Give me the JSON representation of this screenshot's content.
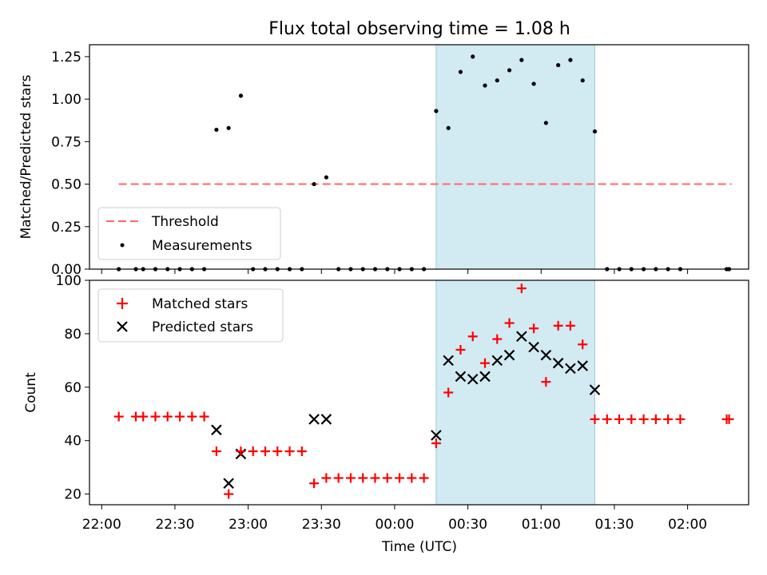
{
  "chart_data": {
    "title": "Flux total observing time = 1.08 h",
    "xlabel": "Time (UTC)",
    "x_ticks": [
      "22:00",
      "22:30",
      "23:00",
      "23:30",
      "00:00",
      "00:30",
      "01:00",
      "01:30",
      "02:00"
    ],
    "x_range_minutes_from_22_00": [
      -5,
      265
    ],
    "highlight_interval": [
      "00:17",
      "01:22"
    ],
    "highlight_color": "#add8e6",
    "top": {
      "type": "scatter",
      "ylabel": "Matched/Predicted stars",
      "ylim": [
        0,
        1.32
      ],
      "yticks": [
        "0.00",
        "0.25",
        "0.50",
        "0.75",
        "1.00",
        "1.25"
      ],
      "legend": {
        "placement": "lower-left",
        "entries": [
          "Threshold",
          "Measurements"
        ]
      },
      "threshold": {
        "name": "Threshold",
        "value": 0.5,
        "x_range": [
          "22:07",
          "02:18"
        ],
        "color": "#ff6666",
        "style": "dashed"
      },
      "measurements": {
        "name": "Measurements",
        "color": "#000000",
        "points": [
          [
            "22:07",
            0.0
          ],
          [
            "22:14",
            0.0
          ],
          [
            "22:17",
            0.0
          ],
          [
            "22:22",
            0.0
          ],
          [
            "22:27",
            0.0
          ],
          [
            "22:32",
            0.0
          ],
          [
            "22:37",
            0.0
          ],
          [
            "22:42",
            0.0
          ],
          [
            "22:47",
            0.82
          ],
          [
            "22:52",
            0.83
          ],
          [
            "22:57",
            1.02
          ],
          [
            "23:02",
            0.0
          ],
          [
            "23:07",
            0.0
          ],
          [
            "23:12",
            0.0
          ],
          [
            "23:17",
            0.0
          ],
          [
            "23:22",
            0.0
          ],
          [
            "23:27",
            0.5
          ],
          [
            "23:32",
            0.54
          ],
          [
            "23:37",
            0.0
          ],
          [
            "23:42",
            0.0
          ],
          [
            "23:47",
            0.0
          ],
          [
            "23:52",
            0.0
          ],
          [
            "23:57",
            0.0
          ],
          [
            "00:02",
            0.0
          ],
          [
            "00:07",
            0.0
          ],
          [
            "00:12",
            0.0
          ],
          [
            "00:17",
            0.93
          ],
          [
            "00:22",
            0.83
          ],
          [
            "00:27",
            1.16
          ],
          [
            "00:32",
            1.25
          ],
          [
            "00:37",
            1.08
          ],
          [
            "00:42",
            1.11
          ],
          [
            "00:47",
            1.17
          ],
          [
            "00:52",
            1.23
          ],
          [
            "00:57",
            1.09
          ],
          [
            "01:02",
            0.86
          ],
          [
            "01:07",
            1.2
          ],
          [
            "01:12",
            1.23
          ],
          [
            "01:17",
            1.11
          ],
          [
            "01:22",
            0.81
          ],
          [
            "01:27",
            0.0
          ],
          [
            "01:32",
            0.0
          ],
          [
            "01:37",
            0.0
          ],
          [
            "01:42",
            0.0
          ],
          [
            "01:47",
            0.0
          ],
          [
            "01:52",
            0.0
          ],
          [
            "01:57",
            0.0
          ],
          [
            "02:16",
            0.0
          ],
          [
            "02:17",
            0.0
          ]
        ]
      }
    },
    "bottom": {
      "type": "scatter",
      "ylabel": "Count",
      "ylim": [
        16,
        100
      ],
      "yticks": [
        "20",
        "40",
        "60",
        "80",
        "100"
      ],
      "legend": {
        "placement": "upper-left",
        "entries": [
          "Matched stars",
          "Predicted stars"
        ]
      },
      "matched": {
        "name": "Matched stars",
        "color": "#ff0000",
        "marker": "+",
        "points": [
          [
            "22:07",
            49
          ],
          [
            "22:14",
            49
          ],
          [
            "22:17",
            49
          ],
          [
            "22:22",
            49
          ],
          [
            "22:27",
            49
          ],
          [
            "22:32",
            49
          ],
          [
            "22:37",
            49
          ],
          [
            "22:42",
            49
          ],
          [
            "22:47",
            36
          ],
          [
            "22:52",
            20
          ],
          [
            "22:57",
            36
          ],
          [
            "23:02",
            36
          ],
          [
            "23:07",
            36
          ],
          [
            "23:12",
            36
          ],
          [
            "23:17",
            36
          ],
          [
            "23:22",
            36
          ],
          [
            "23:27",
            24
          ],
          [
            "23:32",
            26
          ],
          [
            "23:37",
            26
          ],
          [
            "23:42",
            26
          ],
          [
            "23:47",
            26
          ],
          [
            "23:52",
            26
          ],
          [
            "23:57",
            26
          ],
          [
            "00:02",
            26
          ],
          [
            "00:07",
            26
          ],
          [
            "00:12",
            26
          ],
          [
            "00:17",
            39
          ],
          [
            "00:22",
            58
          ],
          [
            "00:27",
            74
          ],
          [
            "00:32",
            79
          ],
          [
            "00:37",
            69
          ],
          [
            "00:42",
            78
          ],
          [
            "00:47",
            84
          ],
          [
            "00:52",
            97
          ],
          [
            "00:57",
            82
          ],
          [
            "01:02",
            62
          ],
          [
            "01:07",
            83
          ],
          [
            "01:12",
            83
          ],
          [
            "01:17",
            76
          ],
          [
            "01:22",
            48
          ],
          [
            "01:27",
            48
          ],
          [
            "01:32",
            48
          ],
          [
            "01:37",
            48
          ],
          [
            "01:42",
            48
          ],
          [
            "01:47",
            48
          ],
          [
            "01:52",
            48
          ],
          [
            "01:57",
            48
          ],
          [
            "02:16",
            48
          ],
          [
            "02:17",
            48
          ]
        ]
      },
      "predicted": {
        "name": "Predicted stars",
        "color": "#000000",
        "marker": "x",
        "points": [
          [
            "22:47",
            44
          ],
          [
            "22:52",
            24
          ],
          [
            "22:57",
            35
          ],
          [
            "23:27",
            48
          ],
          [
            "23:32",
            48
          ],
          [
            "00:17",
            42
          ],
          [
            "00:22",
            70
          ],
          [
            "00:27",
            64
          ],
          [
            "00:32",
            63
          ],
          [
            "00:37",
            64
          ],
          [
            "00:42",
            70
          ],
          [
            "00:47",
            72
          ],
          [
            "00:52",
            79
          ],
          [
            "00:57",
            75
          ],
          [
            "01:02",
            72
          ],
          [
            "01:07",
            69
          ],
          [
            "01:12",
            67
          ],
          [
            "01:17",
            68
          ],
          [
            "01:22",
            59
          ]
        ]
      }
    }
  }
}
